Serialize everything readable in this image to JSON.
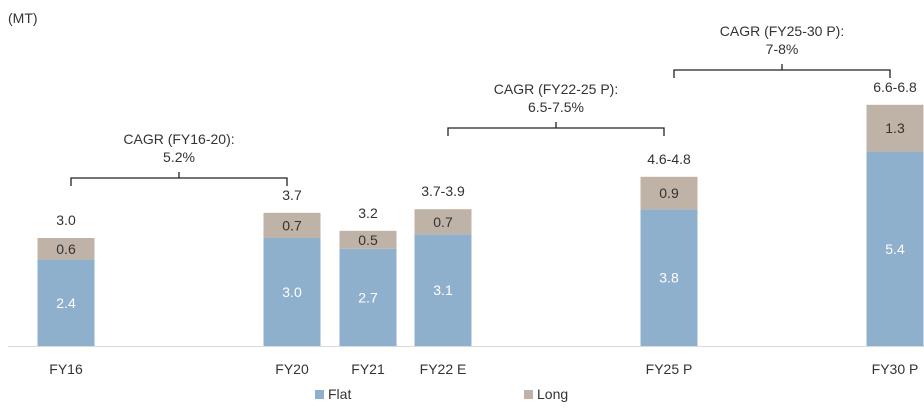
{
  "chart_data": {
    "type": "bar",
    "stacked": true,
    "unit_label": "(MT)",
    "categories": [
      "FY16",
      "FY20",
      "FY21",
      "FY22 E",
      "FY25 P",
      "FY30 P"
    ],
    "series": [
      {
        "name": "Flat",
        "color": "#8FB0CC",
        "values": [
          2.4,
          3.0,
          2.7,
          3.1,
          3.8,
          5.4
        ],
        "labels": [
          "2.4",
          "3.0",
          "2.7",
          "3.1",
          "3.8",
          "5.4"
        ]
      },
      {
        "name": "Long",
        "color": "#BEB3A6",
        "values": [
          0.6,
          0.7,
          0.5,
          0.7,
          0.9,
          1.3
        ],
        "labels": [
          "0.6",
          "0.7",
          "0.5",
          "0.7",
          "0.9",
          "1.3"
        ]
      }
    ],
    "totals": [
      "3.0",
      "3.7",
      "3.2",
      "3.7-3.9",
      "4.6-4.8",
      "6.6-6.8"
    ],
    "cagr_annotations": [
      {
        "label": "CAGR (FY16-20):",
        "value": "5.2%",
        "from": "FY16",
        "to": "FY20"
      },
      {
        "label": "CAGR (FY22-25 P):",
        "value": "6.5-7.5%",
        "from": "FY22 E",
        "to": "FY25 P"
      },
      {
        "label": "CAGR (FY25-30 P):",
        "value": "7-8%",
        "from": "FY25 P",
        "to": "FY30 P"
      }
    ],
    "legend_position": "bottom",
    "grid": false
  }
}
